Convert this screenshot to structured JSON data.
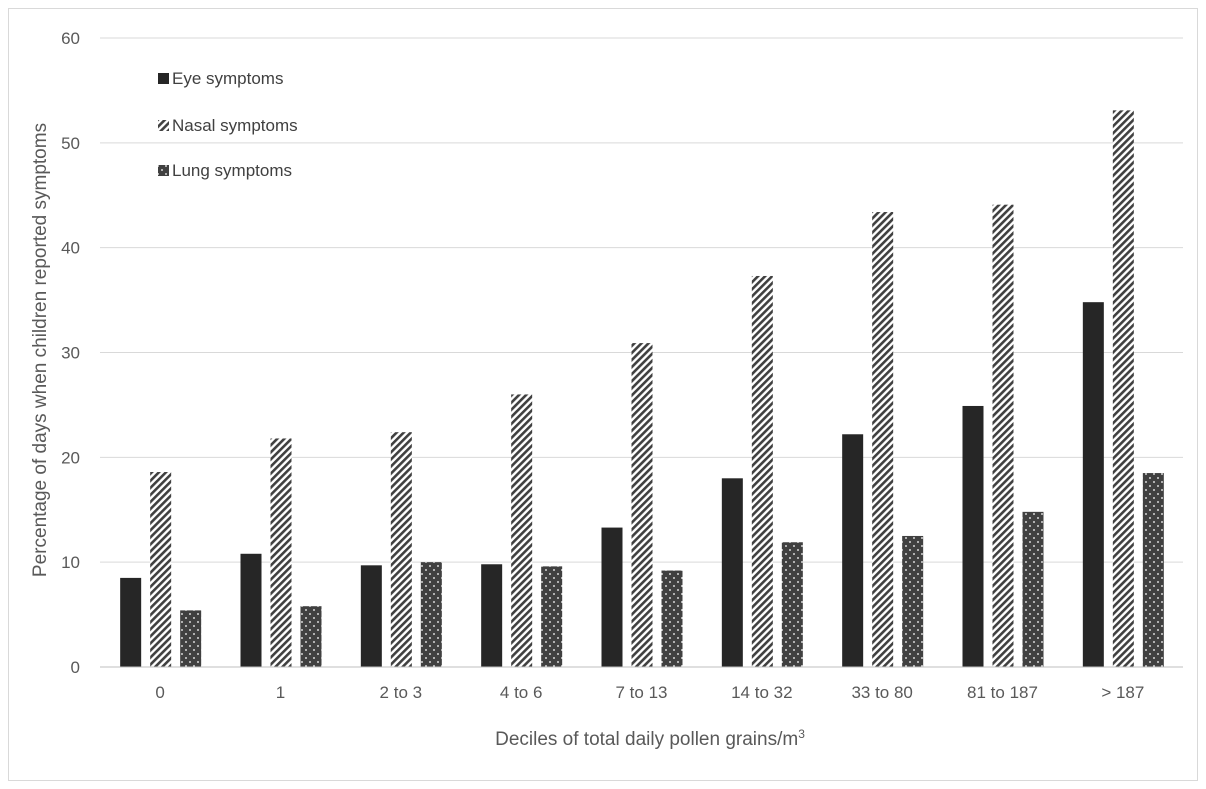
{
  "chart_data": {
    "type": "bar",
    "title": "",
    "xlabel": "Deciles of total daily pollen grains/m",
    "xlabel_superscript": "3",
    "ylabel": "Percentage of days when children reported symptoms",
    "ylim": [
      0,
      60
    ],
    "yticks": [
      0,
      10,
      20,
      30,
      40,
      50,
      60
    ],
    "grid": true,
    "legend_position": "top-left",
    "categories": [
      "0",
      "1",
      "2 to 3",
      "4 to 6",
      "7 to 13",
      "14 to 32",
      "33 to 80",
      "81 to 187",
      "> 187"
    ],
    "series": [
      {
        "name": "Eye symptoms",
        "pattern": "solid",
        "color": "#262626",
        "values": [
          8.5,
          10.8,
          9.7,
          9.8,
          13.3,
          18.0,
          22.2,
          24.9,
          34.8
        ]
      },
      {
        "name": "Nasal symptoms",
        "pattern": "diagonal-stripes",
        "color": "#404040",
        "values": [
          18.6,
          21.8,
          22.4,
          26.0,
          30.9,
          37.3,
          43.4,
          44.1,
          53.1
        ]
      },
      {
        "name": "Lung symptoms",
        "pattern": "dots",
        "color": "#404040",
        "values": [
          5.4,
          5.8,
          10.0,
          9.6,
          9.2,
          11.9,
          12.5,
          14.8,
          18.5
        ]
      }
    ]
  },
  "colors": {
    "gridline": "#d9d9d9",
    "axis": "#bfbfbf",
    "text": "#595959"
  }
}
